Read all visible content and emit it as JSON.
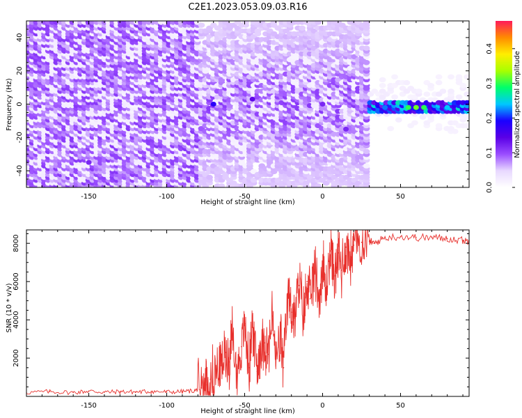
{
  "title": "C2E1.2023.053.09.03.R16",
  "chart_data": [
    {
      "type": "heatmap",
      "xlabel": "Height of straight line (km)",
      "ylabel": "Frequency (Hz)",
      "xlim": [
        -190,
        94
      ],
      "ylim": [
        -50,
        50
      ],
      "xticks": [
        -150,
        -100,
        -50,
        0,
        50
      ],
      "yticks": [
        -40,
        -20,
        0,
        20,
        40
      ],
      "colorbar": {
        "label": "Normalized spectral amplitude",
        "range": [
          0,
          0.48
        ],
        "ticks": [
          0.0,
          0.1,
          0.2,
          0.3,
          0.4
        ],
        "colormap": [
          "#ffffff",
          "#e8d8ff",
          "#9a4dff",
          "#5a00e6",
          "#1a00ff",
          "#00c8ff",
          "#00ff6a",
          "#a8ff00",
          "#ffee00",
          "#ff8c00",
          "#ff1a5a"
        ]
      },
      "description_points": [
        {
          "x": -150,
          "y": -35,
          "value": 0.12
        },
        {
          "x": -70,
          "y": 0,
          "value": 0.18
        },
        {
          "x": -45,
          "y": 3,
          "value": 0.14
        },
        {
          "x": 0,
          "y": 0,
          "value": 0.12
        },
        {
          "x": 15,
          "y": -15,
          "value": 0.12
        },
        {
          "x": 40,
          "y": -2,
          "value": 0.22
        },
        {
          "x": 55,
          "y": -2,
          "value": 0.3
        },
        {
          "x": 60,
          "y": -2,
          "value": 0.32
        },
        {
          "x": 65,
          "y": -2,
          "value": 0.3
        },
        {
          "x": 80,
          "y": -2,
          "value": 0.24
        }
      ]
    },
    {
      "type": "line",
      "xlabel": "Height of straight line (km)",
      "ylabel": "SNR (10 * v/v)",
      "xlim": [
        -190,
        94
      ],
      "ylim": [
        0,
        8700
      ],
      "xticks": [
        -150,
        -100,
        -50,
        0,
        50
      ],
      "yticks": [
        2000,
        4000,
        6000,
        8000
      ],
      "series_color": "#e8302c",
      "series": [
        {
          "x": [
            -190,
            -175,
            -160,
            -150,
            -140,
            -130,
            -120,
            -110,
            -100,
            -90,
            -82,
            -78,
            -75,
            -72,
            -68,
            -65,
            -62,
            -60,
            -58,
            -55,
            -52,
            -50,
            -47,
            -45,
            -42,
            -40,
            -37,
            -35,
            -32,
            -30,
            -27,
            -25,
            -22,
            -20,
            -18,
            -15,
            -12,
            -10,
            -8,
            -5,
            -2,
            0,
            2,
            5,
            8,
            10,
            12,
            15,
            18,
            20,
            25,
            30,
            33,
            40,
            50,
            60,
            70,
            80,
            90,
            94
          ],
          "y": [
            200,
            250,
            200,
            280,
            220,
            250,
            230,
            260,
            230,
            250,
            300,
            450,
            600,
            900,
            1300,
            1600,
            2300,
            1800,
            3200,
            1200,
            2600,
            3800,
            1500,
            3900,
            1300,
            2600,
            2800,
            2200,
            4200,
            1800,
            3000,
            1500,
            5500,
            4400,
            4100,
            5800,
            4200,
            6000,
            5100,
            6700,
            5000,
            7000,
            5500,
            7600,
            6300,
            7500,
            6600,
            7800,
            7300,
            7900,
            8050,
            8100,
            8000,
            8300,
            8350,
            8300,
            8300,
            8250,
            8150,
            8100
          ]
        }
      ]
    }
  ]
}
